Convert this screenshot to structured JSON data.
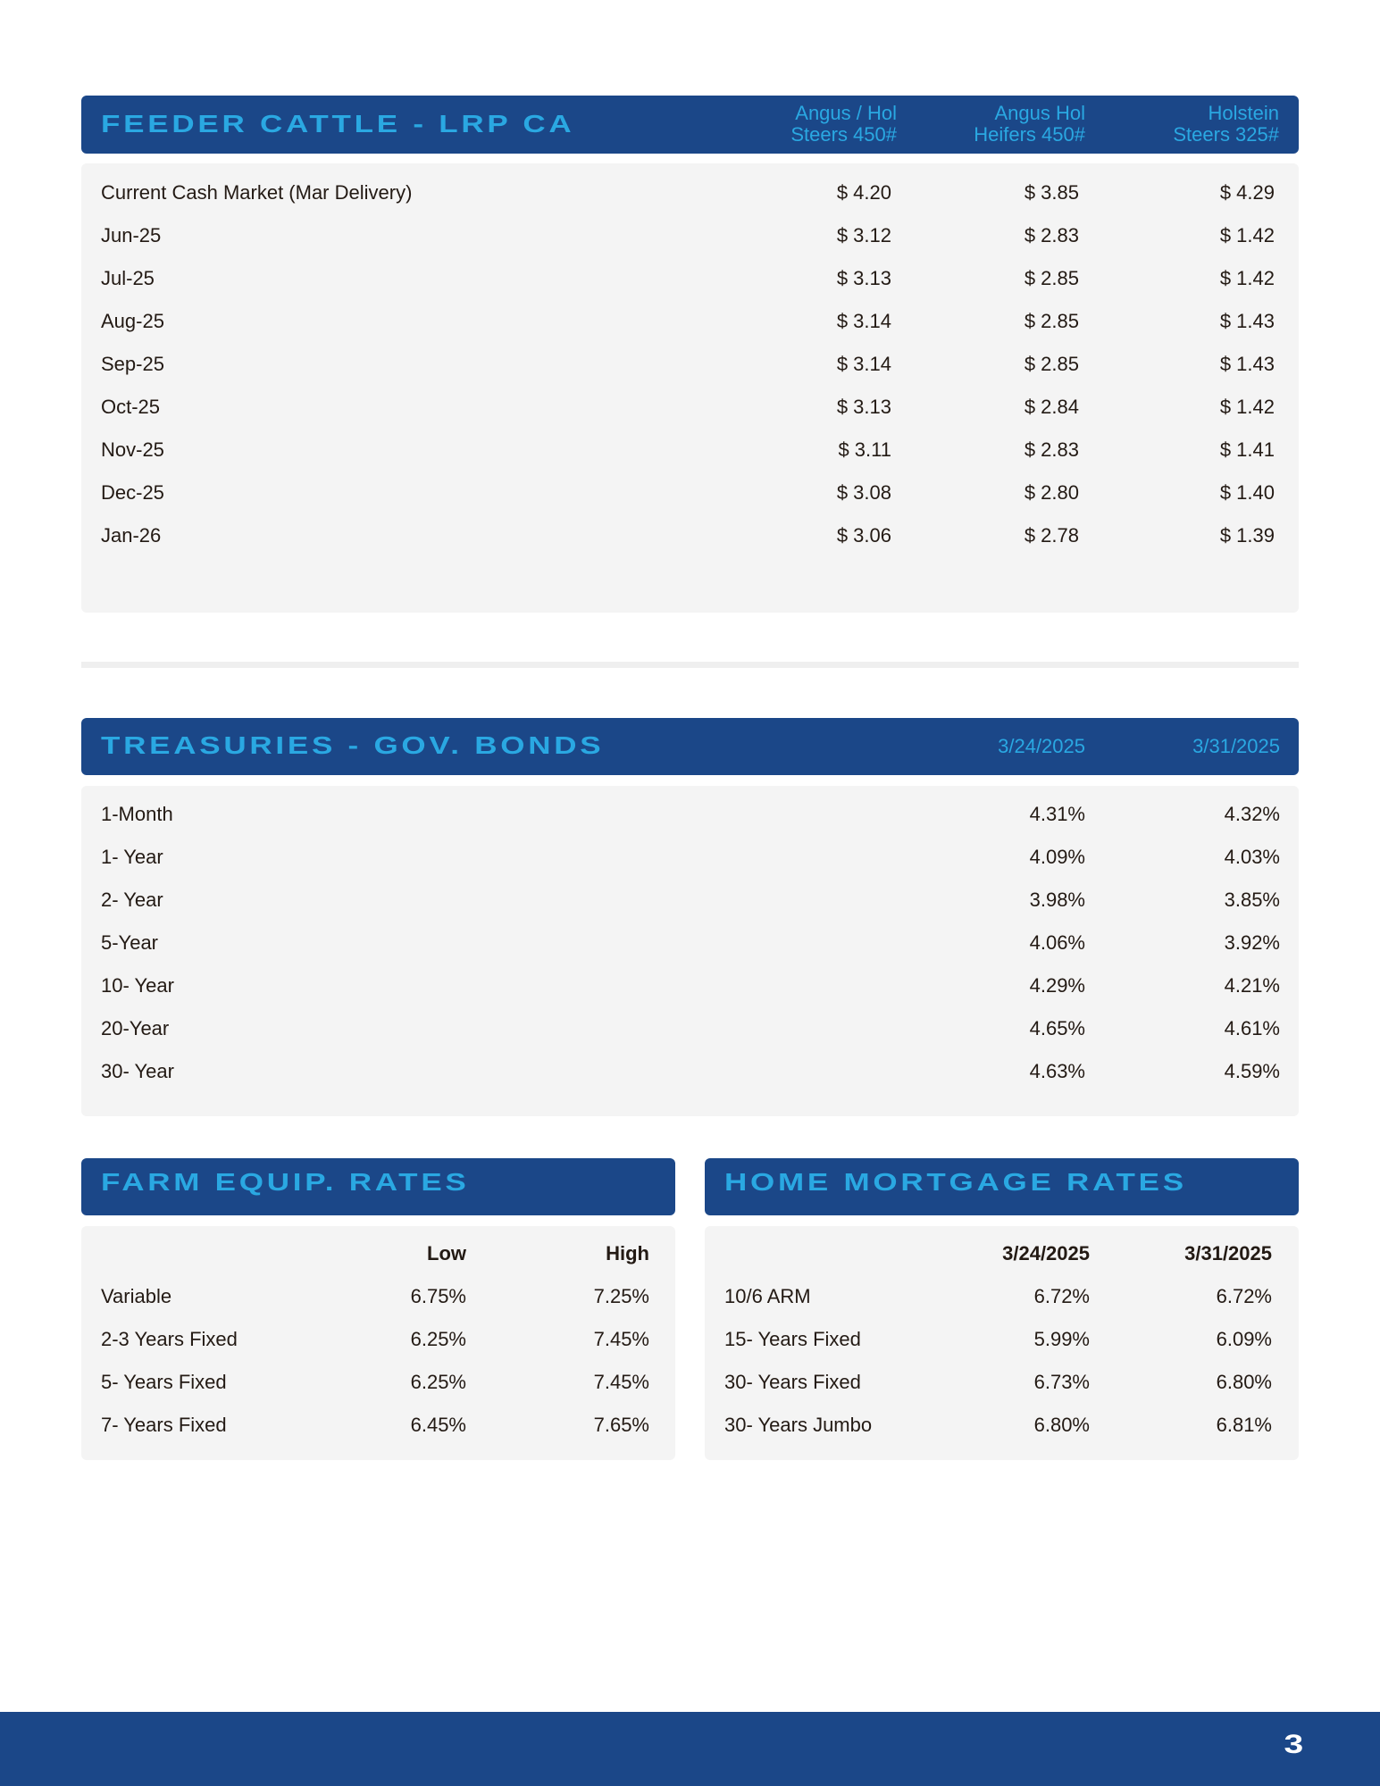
{
  "feeder_cattle": {
    "title": "Feeder Cattle - LRP CA",
    "columns": [
      {
        "line1": "Angus / Hol",
        "line2": "Steers 450#"
      },
      {
        "line1": "Angus Hol",
        "line2": "Heifers 450#"
      },
      {
        "line1": "Holstein",
        "line2": "Steers 325#"
      }
    ],
    "rows": [
      {
        "label": "Current Cash Market (Mar Delivery)",
        "values": [
          "$ 4.20",
          "$ 3.85",
          "$ 4.29"
        ]
      },
      {
        "label": "Jun-25",
        "values": [
          "$ 3.12",
          "$ 2.83",
          "$ 1.42"
        ]
      },
      {
        "label": "Jul-25",
        "values": [
          "$ 3.13",
          "$ 2.85",
          "$ 1.42"
        ]
      },
      {
        "label": "Aug-25",
        "values": [
          "$ 3.14",
          "$ 2.85",
          "$ 1.43"
        ]
      },
      {
        "label": "Sep-25",
        "values": [
          "$ 3.14",
          "$ 2.85",
          "$ 1.43"
        ]
      },
      {
        "label": "Oct-25",
        "values": [
          "$ 3.13",
          "$ 2.84",
          "$ 1.42"
        ]
      },
      {
        "label": "Nov-25",
        "values": [
          "$ 3.11",
          "$ 2.83",
          "$ 1.41"
        ]
      },
      {
        "label": "Dec-25",
        "values": [
          "$ 3.08",
          "$ 2.80",
          "$ 1.40"
        ]
      },
      {
        "label": "Jan-26",
        "values": [
          "$ 3.06",
          "$ 2.78",
          "$ 1.39"
        ]
      }
    ]
  },
  "treasuries": {
    "title": "Treasuries - Gov. Bonds",
    "columns": [
      "3/24/2025",
      "3/31/2025"
    ],
    "rows": [
      {
        "label": "1-Month",
        "values": [
          "4.31%",
          "4.32%"
        ]
      },
      {
        "label": "1- Year",
        "values": [
          "4.09%",
          "4.03%"
        ]
      },
      {
        "label": "2- Year",
        "values": [
          "3.98%",
          "3.85%"
        ]
      },
      {
        "label": "5-Year",
        "values": [
          "4.06%",
          "3.92%"
        ]
      },
      {
        "label": "10- Year",
        "values": [
          "4.29%",
          "4.21%"
        ]
      },
      {
        "label": "20-Year",
        "values": [
          "4.65%",
          "4.61%"
        ]
      },
      {
        "label": "30- Year",
        "values": [
          "4.63%",
          "4.59%"
        ]
      }
    ]
  },
  "farm_equip": {
    "title": "Farm Equip. Rates",
    "columns": [
      "Low",
      "High"
    ],
    "rows": [
      {
        "label": "Variable",
        "values": [
          "6.75%",
          "7.25%"
        ]
      },
      {
        "label": "2-3 Years Fixed",
        "values": [
          "6.25%",
          "7.45%"
        ]
      },
      {
        "label": "5- Years Fixed",
        "values": [
          "6.25%",
          "7.45%"
        ]
      },
      {
        "label": "7- Years Fixed",
        "values": [
          "6.45%",
          "7.65%"
        ]
      }
    ]
  },
  "home_mortgage": {
    "title": "Home Mortgage Rates",
    "columns": [
      "3/24/2025",
      "3/31/2025"
    ],
    "rows": [
      {
        "label": "10/6 ARM",
        "values": [
          "6.72%",
          "6.72%"
        ]
      },
      {
        "label": "15- Years Fixed",
        "values": [
          "5.99%",
          "6.09%"
        ]
      },
      {
        "label": "30- Years Fixed",
        "values": [
          "6.73%",
          "6.80%"
        ]
      },
      {
        "label": "30- Years Jumbo",
        "values": [
          "6.80%",
          "6.81%"
        ]
      }
    ]
  },
  "footer": {
    "page_number": "3"
  },
  "colors": {
    "header_bg": "#1b4788",
    "title_text": "#2aa8e2",
    "panel_bg": "#f4f4f4"
  }
}
